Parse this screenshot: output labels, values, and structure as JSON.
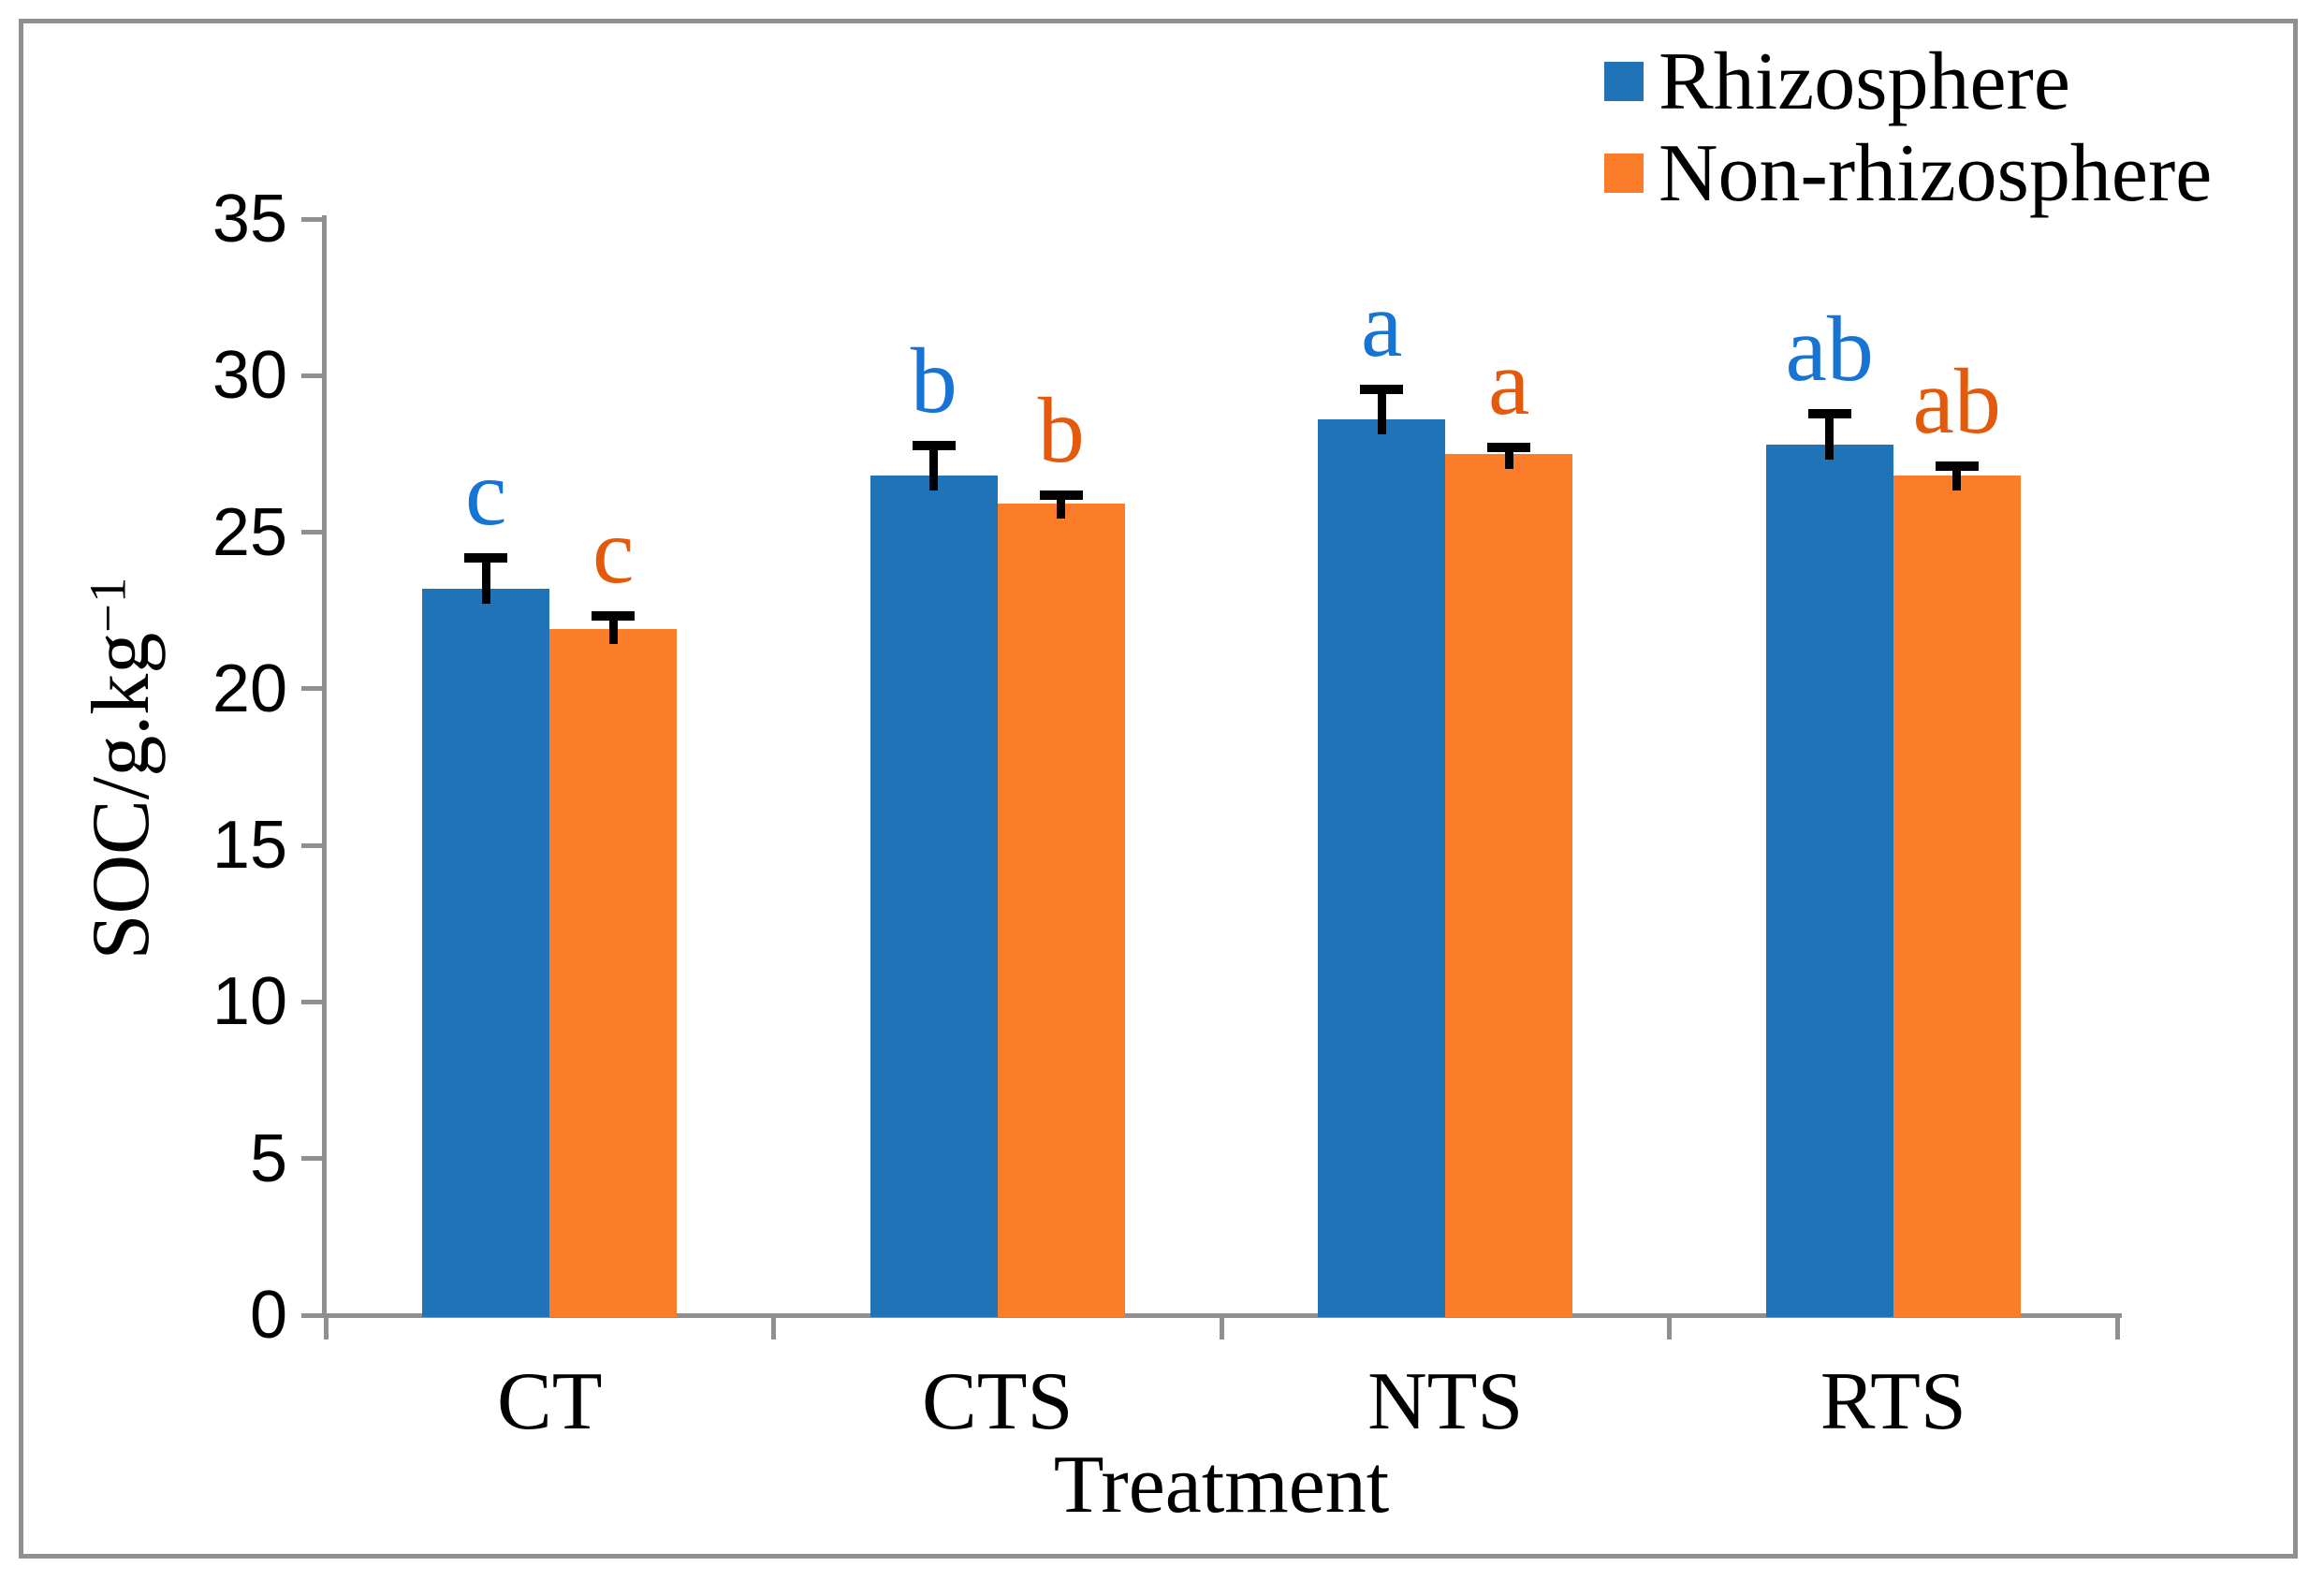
{
  "chart_data": {
    "type": "bar",
    "title": "",
    "categories": [
      "CT",
      "CTS",
      "NTS",
      "RTS"
    ],
    "series": [
      {
        "name": "Rhizosphere",
        "color": "#2173B8",
        "letter_color": "#1874D2",
        "values": [
          23.2,
          26.8,
          28.6,
          27.8
        ],
        "errors": [
          1.0,
          1.0,
          1.0,
          1.0
        ],
        "letters": [
          "c",
          "b",
          "a",
          "ab"
        ]
      },
      {
        "name": "Non-rhizosphere",
        "color": "#FB7D29",
        "letter_color": "#E35A0C",
        "values": [
          21.9,
          25.9,
          27.5,
          26.8
        ],
        "errors": [
          0.45,
          0.3,
          0.25,
          0.35
        ],
        "letters": [
          "c",
          "b",
          "a",
          "ab"
        ]
      }
    ],
    "xlabel": "Treatment",
    "ylabel_base": "SOC/g.kg",
    "ylabel_sup": "−1",
    "ylim": [
      0,
      35
    ],
    "yticks": [
      0,
      5,
      10,
      15,
      20,
      25,
      30,
      35
    ],
    "legend_position": "top-right",
    "grid": false,
    "axis_color": "#8F8F8F",
    "error_bar_color": "#000000"
  }
}
